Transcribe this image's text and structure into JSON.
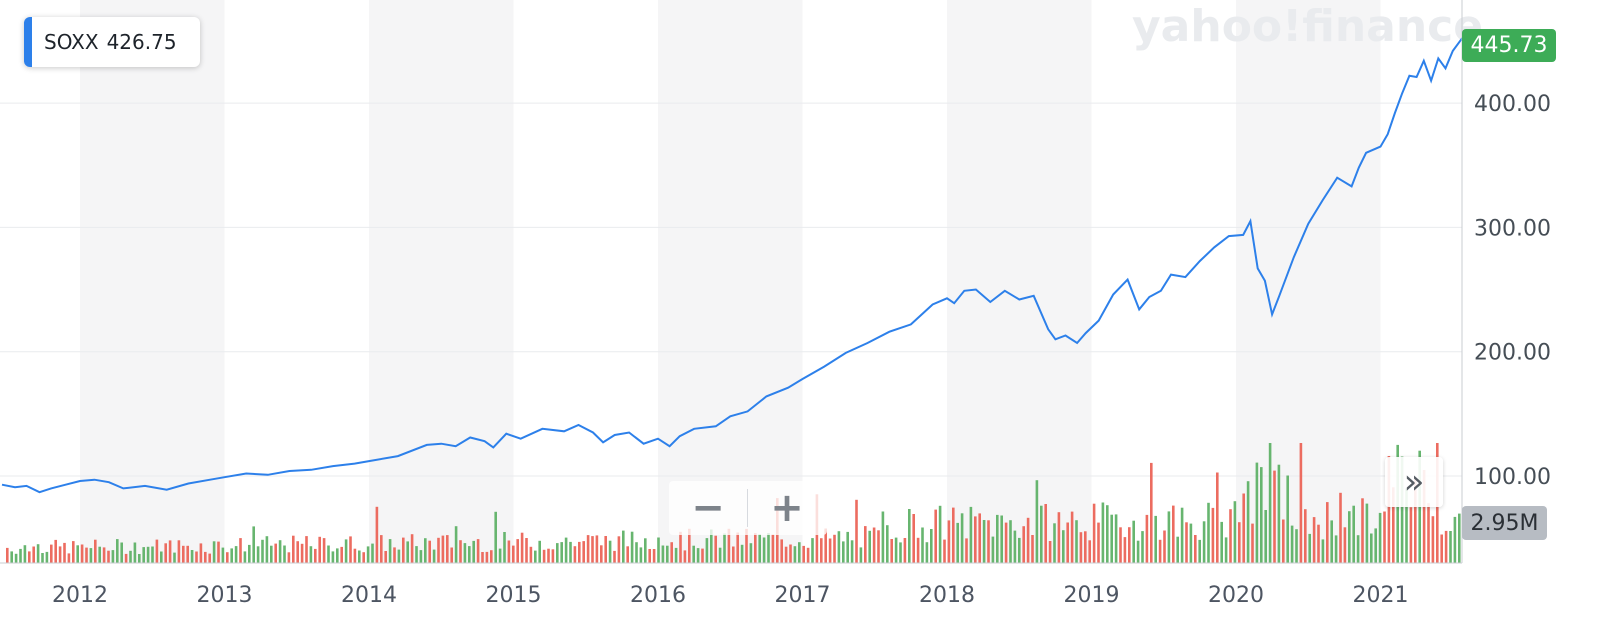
{
  "legend": {
    "symbol": "SOXX",
    "value": "426.75"
  },
  "badges": {
    "price": "445.73",
    "volume": "2.95M"
  },
  "watermark": "yahoo!finance",
  "controls": {
    "zoom_out": "−",
    "zoom_in": "+",
    "expand": "»"
  },
  "colors": {
    "line": "#2d80ea",
    "volume_up": "#67b56f",
    "volume_down": "#ec6c60",
    "band": "#f5f5f6",
    "grid": "#e9ebee",
    "price_badge": "#3dac57",
    "volume_badge": "#b7bcc3"
  },
  "chart_data": {
    "type": "line",
    "title": "",
    "xlabel": "",
    "ylabel": "",
    "x_tick_labels": [
      "2012",
      "2013",
      "2014",
      "2015",
      "2016",
      "2017",
      "2018",
      "2019",
      "2020",
      "2021"
    ],
    "y_ticks": [
      100,
      200,
      300,
      400
    ],
    "y_tick_labels": [
      "100.00",
      "200.00",
      "300.00",
      "400.00"
    ],
    "ylim": [
      58,
      458
    ],
    "xlim": [
      2011.45,
      2021.64
    ],
    "grid": true,
    "legend_position": "top-left",
    "series": [
      {
        "name": "SOXX",
        "x": [
          2011.46,
          2011.55,
          2011.63,
          2011.72,
          2011.8,
          2011.9,
          2012.0,
          2012.1,
          2012.2,
          2012.3,
          2012.45,
          2012.6,
          2012.75,
          2012.9,
          2013.0,
          2013.15,
          2013.3,
          2013.45,
          2013.6,
          2013.75,
          2013.9,
          2014.0,
          2014.2,
          2014.4,
          2014.5,
          2014.6,
          2014.7,
          2014.8,
          2014.86,
          2014.95,
          2015.05,
          2015.2,
          2015.35,
          2015.45,
          2015.55,
          2015.62,
          2015.7,
          2015.8,
          2015.9,
          2016.0,
          2016.08,
          2016.15,
          2016.25,
          2016.4,
          2016.5,
          2016.62,
          2016.75,
          2016.9,
          2017.0,
          2017.15,
          2017.3,
          2017.45,
          2017.6,
          2017.75,
          2017.9,
          2018.0,
          2018.05,
          2018.12,
          2018.2,
          2018.3,
          2018.4,
          2018.5,
          2018.6,
          2018.7,
          2018.75,
          2018.82,
          2018.9,
          2018.96,
          2019.05,
          2019.15,
          2019.25,
          2019.33,
          2019.4,
          2019.48,
          2019.55,
          2019.65,
          2019.75,
          2019.85,
          2019.95,
          2020.05,
          2020.1,
          2020.15,
          2020.2,
          2020.25,
          2020.3,
          2020.4,
          2020.5,
          2020.6,
          2020.7,
          2020.8,
          2020.85,
          2020.9,
          2021.0,
          2021.05,
          2021.1,
          2021.15,
          2021.2,
          2021.25,
          2021.3,
          2021.35,
          2021.4,
          2021.45,
          2021.5,
          2021.57,
          2021.61
        ],
        "y": [
          93,
          91,
          92,
          87,
          90,
          93,
          96,
          97,
          95,
          90,
          92,
          89,
          94,
          97,
          99,
          102,
          101,
          104,
          105,
          108,
          110,
          112,
          116,
          125,
          126,
          124,
          131,
          128,
          123,
          134,
          130,
          138,
          136,
          141,
          135,
          127,
          133,
          135,
          126,
          130,
          124,
          132,
          138,
          140,
          148,
          152,
          164,
          171,
          178,
          188,
          199,
          207,
          216,
          222,
          238,
          243,
          239,
          249,
          250,
          240,
          249,
          242,
          245,
          218,
          210,
          213,
          207,
          215,
          225,
          246,
          258,
          234,
          244,
          249,
          262,
          260,
          273,
          284,
          293,
          294,
          305,
          267,
          257,
          230,
          245,
          276,
          303,
          322,
          340,
          333,
          348,
          360,
          365,
          375,
          392,
          408,
          422,
          421,
          434,
          418,
          436,
          428,
          442,
          453,
          449
        ]
      }
    ]
  }
}
